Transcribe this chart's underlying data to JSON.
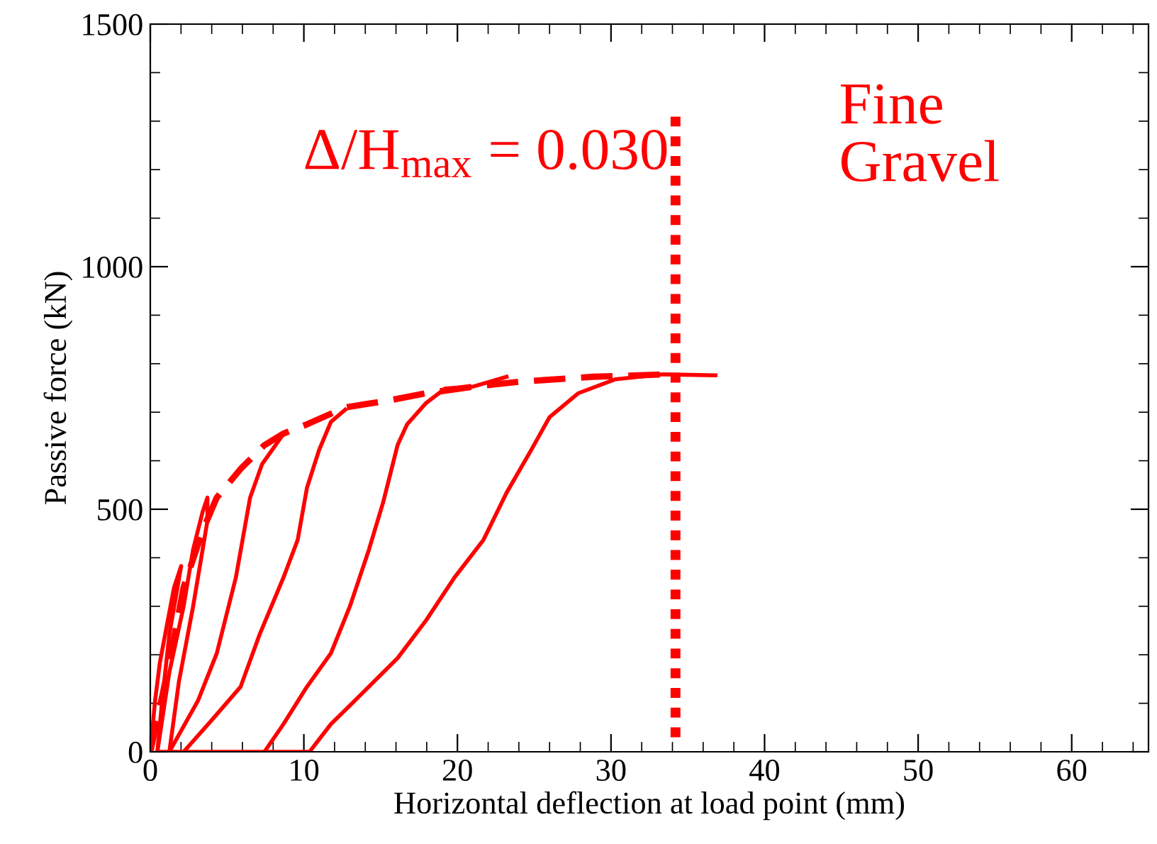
{
  "chart_data": {
    "type": "line",
    "xlabel": "Horizontal deflection at load point (mm)",
    "ylabel": "Passive force (kN)",
    "xlim": [
      0,
      65
    ],
    "xticks": [
      0,
      10,
      20,
      30,
      40,
      50,
      60
    ],
    "ylim": [
      0,
      1500
    ],
    "yticks": [
      0,
      500,
      1000,
      1500
    ],
    "grid": false,
    "legend": false,
    "marker": "none",
    "series": [
      {
        "color": "#ff0000",
        "line_style": "dashed",
        "x": [
          0,
          1.24,
          2.17,
          3.41,
          4.33,
          5.88,
          7.43,
          8.67,
          10.2,
          12.7,
          15.5,
          17.96,
          21.1,
          24.1,
          28.8,
          33.5
        ],
        "values": [
          0,
          183,
          339,
          456,
          524,
          583,
          632,
          656,
          675,
          710,
          724,
          739,
          753,
          763,
          773,
          778
        ]
      },
      {
        "color": "#ff0000",
        "line_style": "solid",
        "x": [
          0,
          0.31,
          0.62,
          1.08,
          1.55,
          2.01,
          1.24,
          0.77,
          0.46
        ],
        "values": [
          0,
          105,
          183,
          261,
          339,
          383,
          242,
          105,
          0
        ]
      },
      {
        "color": "#ff0000",
        "line_style": "solid",
        "x": [
          0.46,
          1.24,
          2.17,
          2.79,
          3.41,
          3.72,
          3.72,
          2.79,
          1.86,
          1.24
        ],
        "values": [
          0,
          164,
          300,
          417,
          495,
          524,
          476,
          300,
          144,
          0
        ]
      },
      {
        "color": "#ff0000",
        "line_style": "solid",
        "x": [
          1.24,
          3.1,
          4.33,
          5.57,
          6.5,
          7.28,
          8.58
        ],
        "values": [
          0,
          105,
          203,
          359,
          524,
          593,
          651
        ]
      },
      {
        "color": "#ff0000",
        "line_style": "solid",
        "x": [
          2.17,
          4.02,
          5.88,
          7.12,
          8.67,
          9.6,
          10.2,
          10.99,
          11.76,
          12.69
        ],
        "values": [
          0,
          66,
          134,
          242,
          359,
          437,
          544,
          622,
          680,
          705
        ]
      },
      {
        "color": "#ff0000",
        "line_style": "solid",
        "x": [
          7.43,
          8.67,
          10.2,
          11.76,
          13.0,
          14.24,
          15.17,
          16.1,
          16.72,
          17.96,
          19.2,
          21.05,
          23.2
        ],
        "values": [
          0,
          57,
          134,
          203,
          300,
          417,
          515,
          632,
          675,
          719,
          749,
          753,
          773
        ]
      },
      {
        "color": "#ff0000",
        "line_style": "solid",
        "x": [
          0.5,
          10.37,
          11.76,
          13.3,
          16.1,
          17.96,
          19.8,
          21.7,
          23.2,
          24.8,
          26.0,
          27.86,
          30.3,
          33.4,
          36.8
        ],
        "values": [
          0,
          0,
          57,
          105,
          193,
          271,
          359,
          437,
          534,
          622,
          690,
          739,
          768,
          778,
          776
        ]
      }
    ],
    "ref_lines": [
      {
        "axis": "x",
        "value": 34.2,
        "color": "#ff0000",
        "line_style": "dotted"
      }
    ],
    "annotations": [
      "Δ/H$_{max}$ = 0.030",
      "Fine\nGravel"
    ]
  }
}
